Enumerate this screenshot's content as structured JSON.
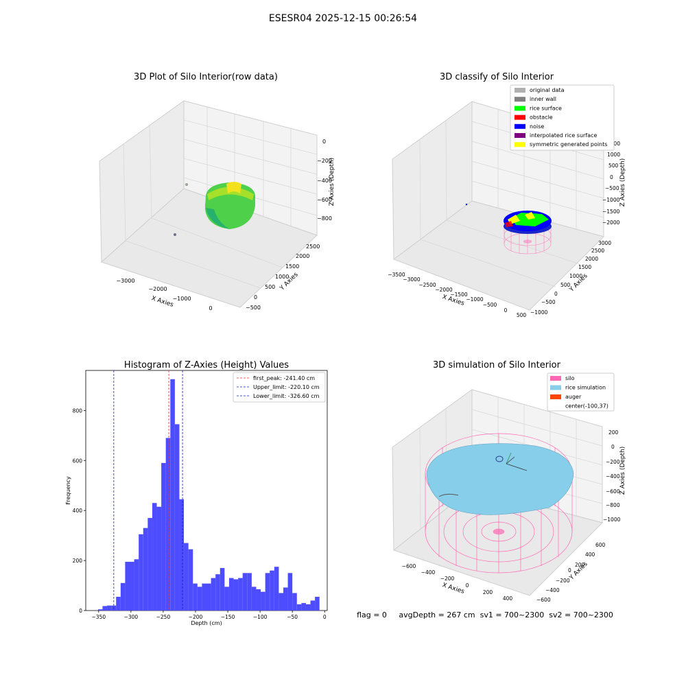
{
  "suptitle": "ESESR04 2025-12-15 00:26:54",
  "colors": {
    "histogram_bar": "#4d4dff",
    "first_peak": "#ff2a2a",
    "limit_line": "#1a1acc",
    "original_data": "#b0b0b0",
    "inner_wall": "#808080",
    "rice_surface": "#00ff00",
    "obstacle": "#ff0000",
    "noise": "#0000ff",
    "interpolated_rice_surface": "#800080",
    "symmetric_points": "#ffff00",
    "silo": "#ff69b4",
    "rice_simulation": "#87ceeb",
    "auger": "#ff4500"
  },
  "panels": {
    "raw": {
      "title": "3D Plot of Silo Interior(row data)",
      "x_label": "X Axies",
      "y_label": "Y Axies",
      "z_label": "Z Axies (Depth)",
      "x_ticks": [
        "−3000",
        "−2000",
        "−1000",
        "0"
      ],
      "y_ticks": [
        "−500",
        "0",
        "500",
        "1000",
        "1500",
        "2000",
        "2500"
      ],
      "z_ticks": [
        "0",
        "−200",
        "−400",
        "−600",
        "−800"
      ]
    },
    "classify": {
      "title": "3D classify of Silo Interior",
      "x_label": "X Axies",
      "y_label": "Y Axies",
      "z_label": "Z Axies (Depth)",
      "x_ticks": [
        "−3500",
        "−3000",
        "−2500",
        "−2000",
        "−1500",
        "−1000",
        "−500",
        "0",
        "500"
      ],
      "y_ticks": [
        "−1000",
        "−500",
        "0",
        "500",
        "1000",
        "1500",
        "2000",
        "2500",
        "3000"
      ],
      "z_ticks": [
        "1500",
        "1000",
        "500",
        "0",
        "−500",
        "−1000",
        "−1500",
        "−2000"
      ],
      "legend": [
        {
          "label": "original data",
          "color": "#b0b0b0"
        },
        {
          "label": "inner wall",
          "color": "#808080"
        },
        {
          "label": "rice surface",
          "color": "#00ff00"
        },
        {
          "label": "obstacle",
          "color": "#ff0000"
        },
        {
          "label": "noise",
          "color": "#0000ff"
        },
        {
          "label": "interpolated rice surface",
          "color": "#800080"
        },
        {
          "label": "symmetric generated points",
          "color": "#ffff00"
        }
      ]
    },
    "simulation": {
      "title": "3D simulation of Silo Interior",
      "x_label": "X Axies",
      "y_label": "Y Axies",
      "z_label": "Z Axies (Depth)",
      "x_ticks": [
        "−600",
        "−400",
        "−200",
        "0",
        "200",
        "400"
      ],
      "y_ticks": [
        "−600",
        "−400",
        "−200",
        "0",
        "200",
        "400",
        "600"
      ],
      "z_ticks": [
        "200",
        "0",
        "−200",
        "−400",
        "−600",
        "−800",
        "−1000"
      ],
      "legend": [
        {
          "label": "silo",
          "color": "#ff69b4"
        },
        {
          "label": "rice simulation",
          "color": "#87ceeb"
        },
        {
          "label": "auger",
          "color": "#ff4500"
        },
        {
          "label": "center(-100,37)",
          "color": ""
        }
      ]
    }
  },
  "status_line": "flag = 0     avgDepth = 267 cm  sv1 = 700~2300  sv2 = 700~2300",
  "chart_data": {
    "type": "bar",
    "title": "Histogram of Z-Axies (Height) Values",
    "xlabel": "Depth (cm)",
    "ylabel": "Frequency",
    "xlim": [
      -370,
      4
    ],
    "ylim": [
      0,
      960
    ],
    "x_ticks": [
      -350,
      -300,
      -250,
      -200,
      -150,
      -100,
      -50,
      0
    ],
    "y_ticks": [
      0,
      200,
      400,
      600,
      800
    ],
    "bin_edges": [
      -351,
      -344,
      -337,
      -330,
      -323,
      -316,
      -309,
      -302,
      -295,
      -288,
      -281,
      -274,
      -267,
      -260,
      -253,
      -246,
      -239,
      -232,
      -225,
      -218,
      -211,
      -204,
      -197,
      -190,
      -183,
      -176,
      -169,
      -162,
      -155,
      -148,
      -141,
      -134,
      -127,
      -120,
      -113,
      -106,
      -99,
      -92,
      -85,
      -78,
      -71,
      -64,
      -57,
      -50,
      -43,
      -36,
      -29,
      -22,
      -15,
      -8,
      -1
    ],
    "counts": [
      5,
      18,
      20,
      20,
      55,
      110,
      195,
      195,
      205,
      305,
      330,
      370,
      430,
      415,
      590,
      690,
      925,
      745,
      445,
      270,
      245,
      108,
      95,
      108,
      108,
      130,
      145,
      170,
      95,
      130,
      125,
      130,
      150,
      150,
      95,
      85,
      75,
      150,
      160,
      175,
      70,
      92,
      150,
      70,
      25,
      30,
      25,
      40,
      55,
      0
    ],
    "reference_lines": [
      {
        "label": "first_peak: -241.40 cm",
        "x": -241.4,
        "color": "#ff2a2a"
      },
      {
        "label": "Upper_limit: -220.10 cm",
        "x": -220.1,
        "color": "#1a1acc"
      },
      {
        "label": "Lower_limit: -326.60 cm",
        "x": -326.6,
        "color": "#1a1acc"
      }
    ],
    "legend_position": "upper right"
  }
}
